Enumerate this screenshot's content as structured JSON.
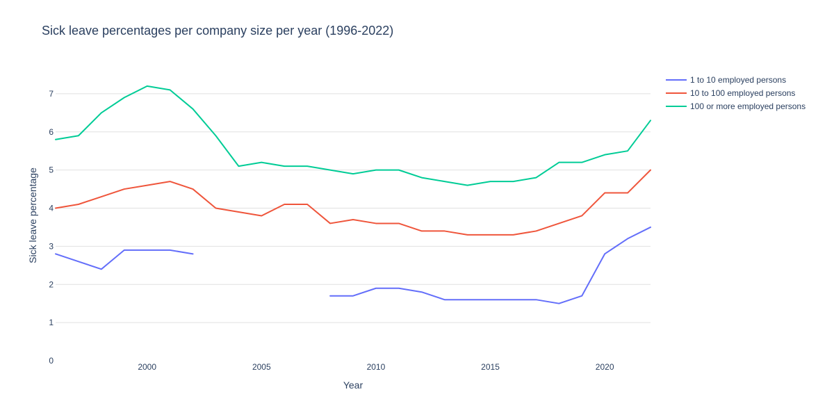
{
  "chart_data": {
    "type": "line",
    "title": "Sick leave percentages per company size per year (1996-2022)",
    "xlabel": "Year",
    "ylabel": "Sick leave percentage",
    "xlim": [
      1996,
      2022
    ],
    "ylim": [
      0,
      8
    ],
    "x_ticks": [
      2000,
      2005,
      2010,
      2015,
      2020
    ],
    "y_ticks": [
      0,
      1,
      2,
      3,
      4,
      5,
      6,
      7
    ],
    "grid": true,
    "legend_position": "top-right",
    "x": [
      1996,
      1997,
      1998,
      1999,
      2000,
      2001,
      2002,
      2003,
      2004,
      2005,
      2006,
      2007,
      2008,
      2009,
      2010,
      2011,
      2012,
      2013,
      2014,
      2015,
      2016,
      2017,
      2018,
      2019,
      2020,
      2021,
      2022
    ],
    "series": [
      {
        "name": "1 to 10 employed persons",
        "color": "#636efa",
        "values": [
          2.8,
          2.6,
          2.4,
          2.9,
          2.9,
          2.9,
          2.8,
          null,
          null,
          null,
          null,
          null,
          1.7,
          1.7,
          1.9,
          1.9,
          1.8,
          1.6,
          1.6,
          1.6,
          1.6,
          1.6,
          1.5,
          1.7,
          2.8,
          3.2,
          3.5
        ]
      },
      {
        "name": "10 to 100 employed persons",
        "color": "#ef553b",
        "values": [
          4.0,
          4.1,
          4.3,
          4.5,
          4.6,
          4.7,
          4.5,
          4.0,
          3.9,
          3.8,
          4.1,
          4.1,
          3.6,
          3.7,
          3.6,
          3.6,
          3.4,
          3.4,
          3.3,
          3.3,
          3.3,
          3.4,
          3.6,
          3.8,
          4.4,
          4.4,
          5.0
        ]
      },
      {
        "name": "100 or more employed persons",
        "color": "#00cc96",
        "values": [
          5.8,
          5.9,
          6.5,
          6.9,
          7.2,
          7.1,
          6.6,
          5.9,
          5.1,
          5.2,
          5.1,
          5.1,
          5.0,
          4.9,
          5.0,
          5.0,
          4.8,
          4.7,
          4.6,
          4.7,
          4.7,
          4.8,
          5.2,
          5.2,
          5.4,
          5.5,
          6.3
        ]
      }
    ]
  }
}
